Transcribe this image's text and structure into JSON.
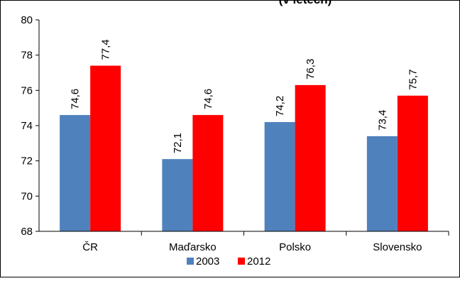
{
  "chart_data": {
    "type": "bar",
    "title": "(v letech)",
    "categories": [
      "ČR",
      "Maďarsko",
      "Polsko",
      "Slovensko"
    ],
    "series": [
      {
        "name": "2003",
        "color": "#4F81BD",
        "values": [
          74.6,
          72.1,
          74.2,
          73.4
        ],
        "labels": [
          "74,6",
          "72,1",
          "74,2",
          "73,4"
        ]
      },
      {
        "name": "2012",
        "color": "#FF0000",
        "values": [
          77.4,
          74.6,
          76.3,
          75.7
        ],
        "labels": [
          "77,4",
          "74,6",
          "76,3",
          "75,7"
        ]
      }
    ],
    "ylim": [
      68,
      80
    ],
    "yticks": [
      68,
      70,
      72,
      74,
      76,
      78,
      80
    ],
    "xlabel": "",
    "ylabel": "",
    "legend_position": "bottom",
    "grid": false
  }
}
